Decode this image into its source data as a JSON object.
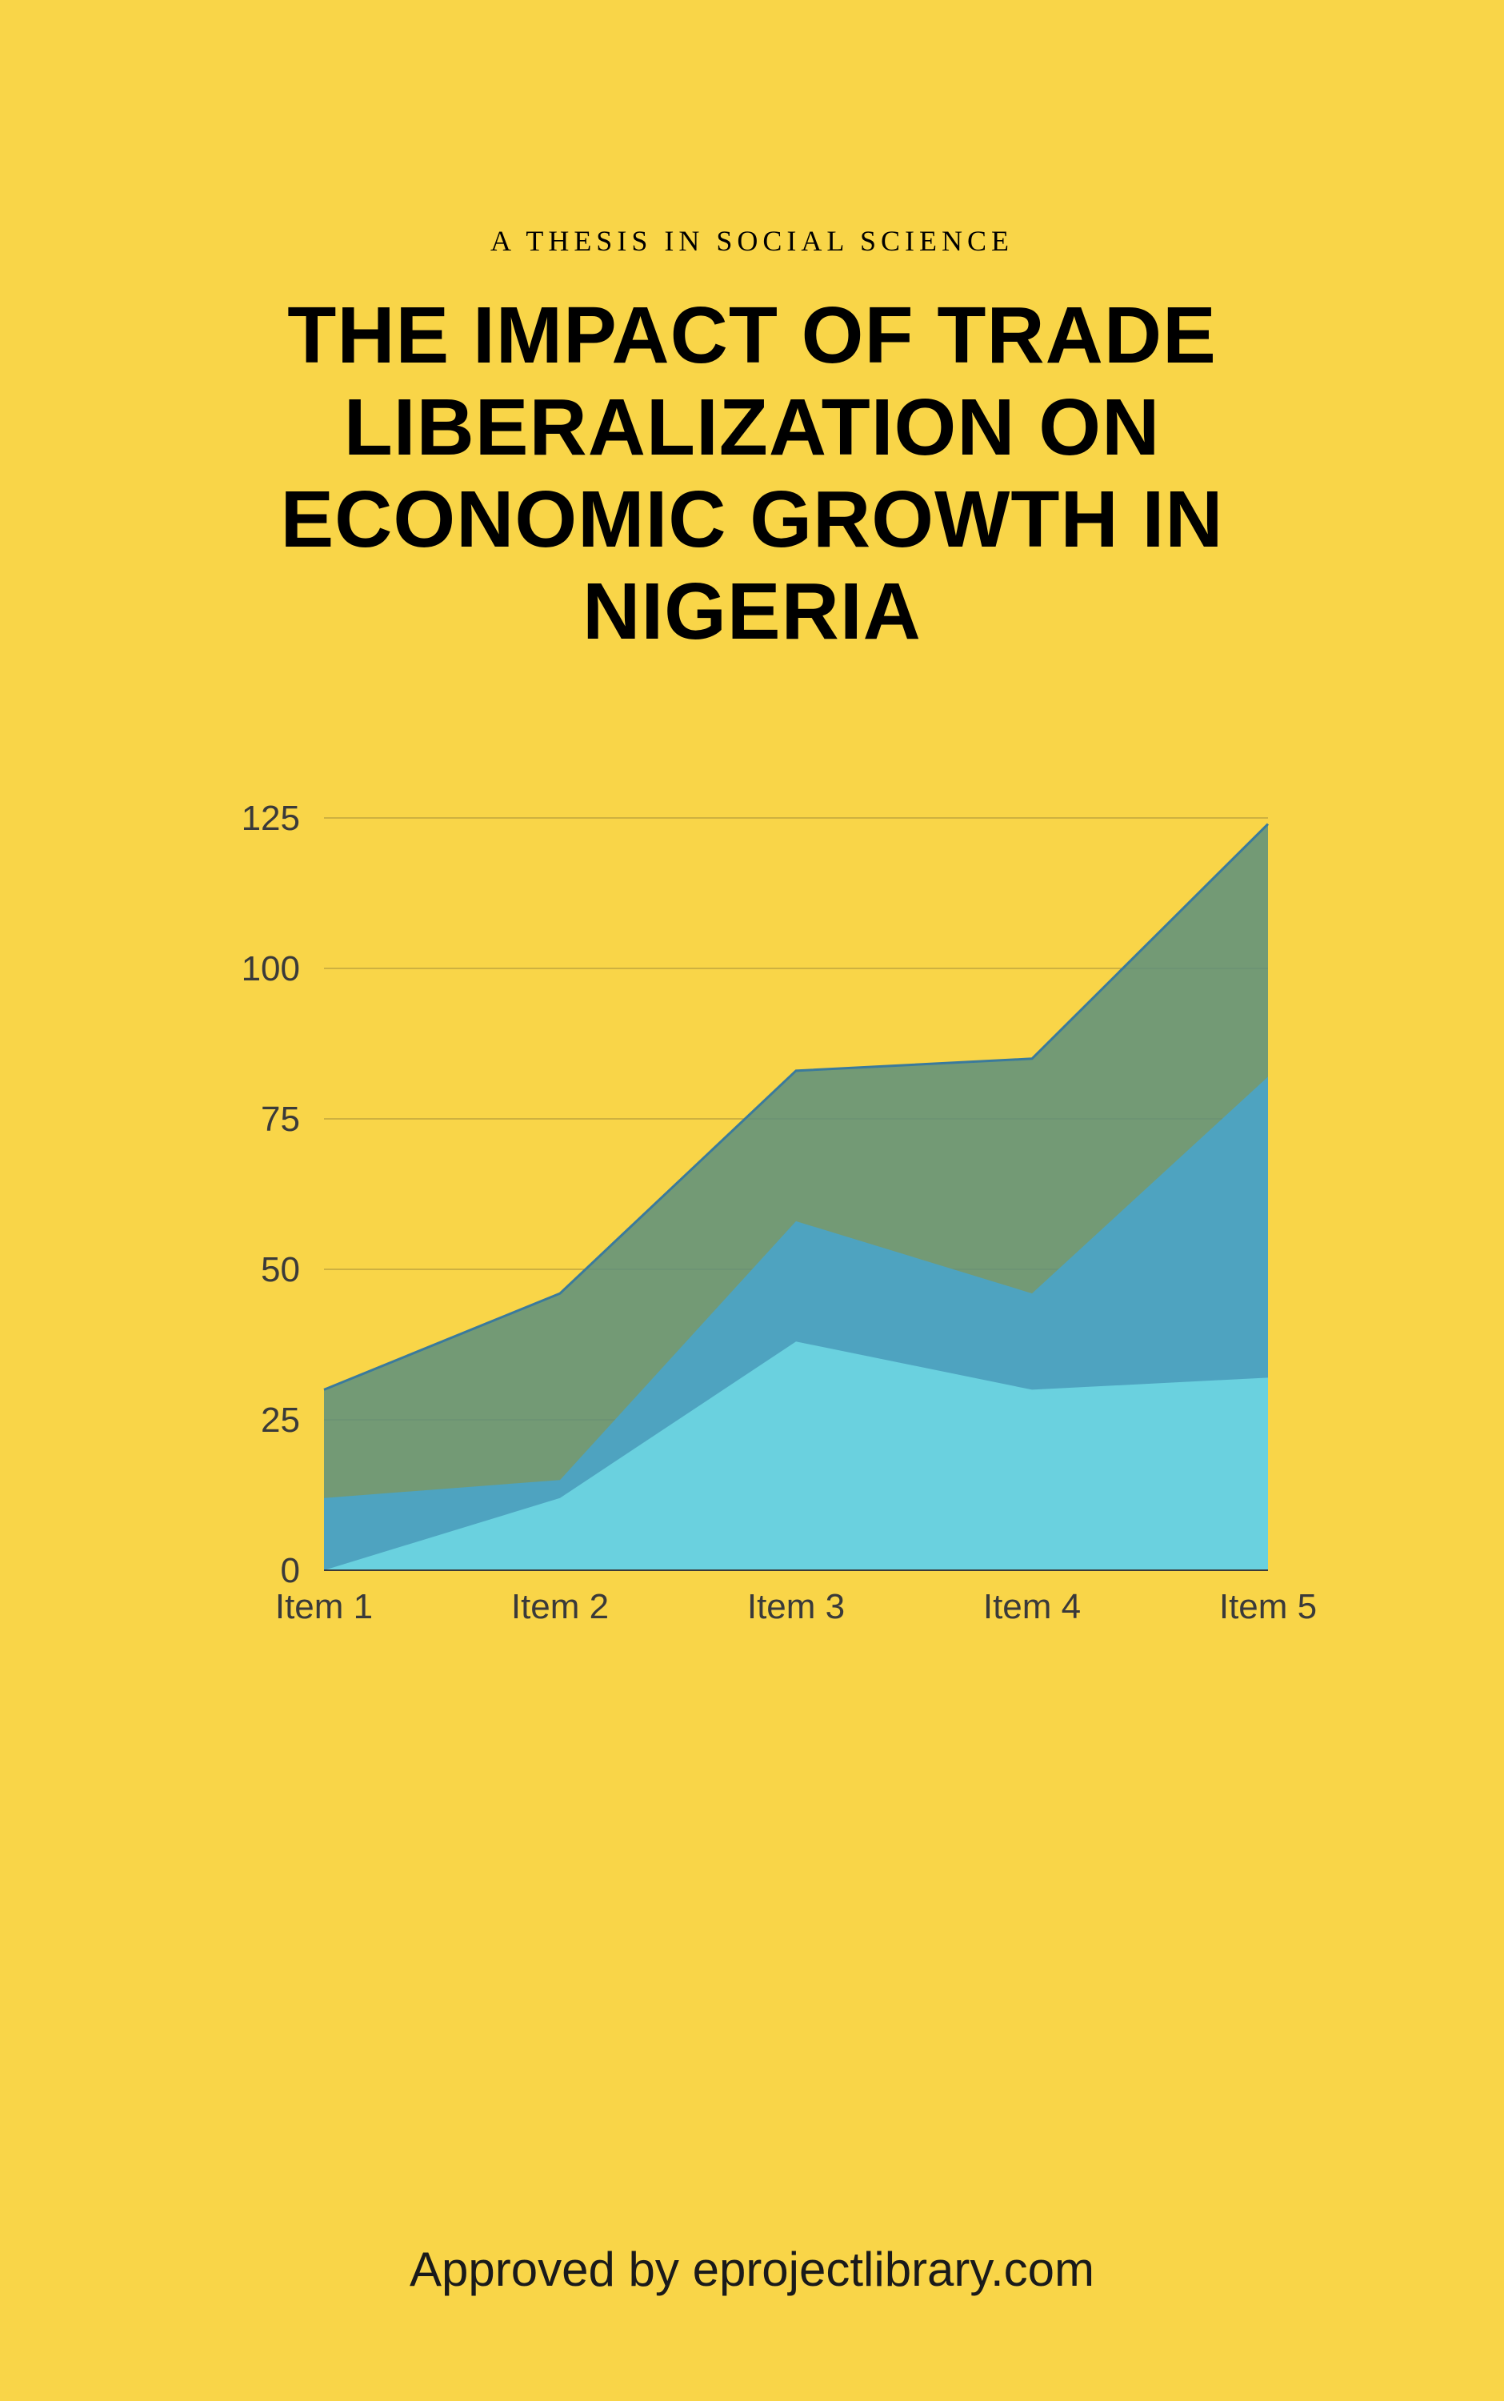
{
  "subtitle": "A THESIS IN SOCIAL SCIENCE",
  "title": "THE IMPACT OF TRADE LIBERALIZATION ON ECONOMIC GROWTH IN NIGERIA",
  "footer": "Approved by eprojectlibrary.com",
  "chart": {
    "type": "area",
    "background_color": "#f9d548",
    "grid_color": "#bfa53e",
    "axis_color": "#3a3a3a",
    "label_color": "#3a3a3a",
    "label_fontsize": 44,
    "ylim": [
      0,
      125
    ],
    "ytick_step": 25,
    "yticks": [
      0,
      25,
      50,
      75,
      100,
      125
    ],
    "xticks": [
      "Item 1",
      "Item 2",
      "Item 3",
      "Item 4",
      "Item 5"
    ],
    "series": {
      "back": {
        "color": "#5c8f7e",
        "line_color": "#3a7a9c",
        "values": [
          30,
          46,
          83,
          85,
          124
        ]
      },
      "mid": {
        "color": "#4ca3c4",
        "values": [
          12,
          15,
          58,
          46,
          82
        ]
      },
      "front": {
        "color": "#6bd4e0",
        "values": [
          0,
          12,
          38,
          30,
          32
        ]
      }
    }
  }
}
